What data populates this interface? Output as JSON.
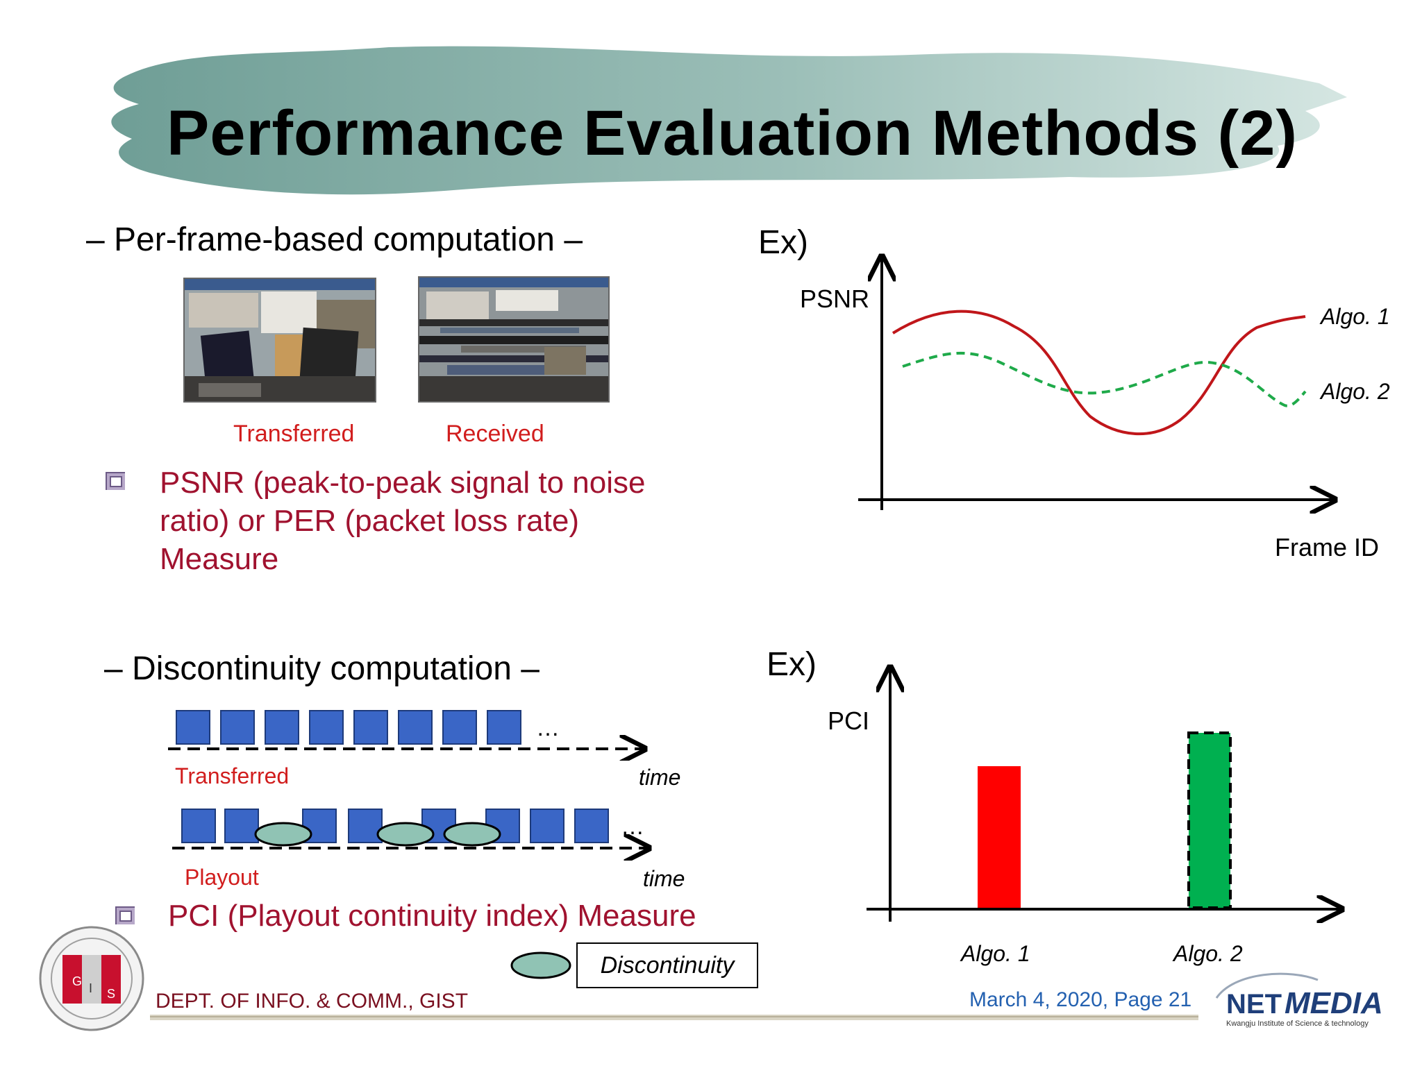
{
  "slide": {
    "title": "Performance Evaluation Methods (2)"
  },
  "section1": {
    "heading": "–  Per-frame-based computation –",
    "image_captions": [
      "Transferred",
      "Received"
    ],
    "bullet": "PSNR (peak-to-peak signal to noise ratio) or PER (packet loss rate) Measure",
    "example_label": "Ex)",
    "graph": {
      "y_label": "PSNR",
      "x_label": "Frame ID",
      "series": [
        {
          "name": "Algo. 1",
          "color": "#c0161a",
          "style": "solid"
        },
        {
          "name": "Algo. 2",
          "color": "#1faa4a",
          "style": "dashed"
        }
      ]
    }
  },
  "section2": {
    "heading": "–  Discontinuity computation –",
    "timeline_labels": {
      "transferred": "Transferred",
      "playout": "Playout",
      "time": "time",
      "ellipsis": "…"
    },
    "bullet": "PCI (Playout continuity index) Measure",
    "legend_label": "Discontinuity",
    "example_label": "Ex)",
    "chart": {
      "y_label": "PCI",
      "categories": [
        "Algo. 1",
        "Algo. 2"
      ],
      "bar_colors": [
        "#ff0000",
        "#00b050"
      ]
    }
  },
  "footer": {
    "left": "DEPT. OF INFO. & COMM., GIST",
    "right": "March 4, 2020,  Page  21",
    "logo_text": "NETMEDIA",
    "logo_sub": "Kwangju Institute of Science & technology",
    "seal_text": "GIST"
  }
}
